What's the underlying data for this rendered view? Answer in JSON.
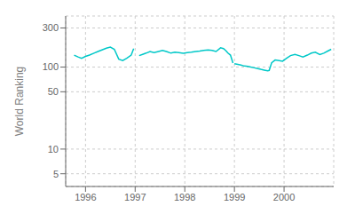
{
  "chart_data": {
    "type": "line",
    "ylabel": "World Ranking",
    "log": "y",
    "grid": true,
    "xlim": [
      1995.6,
      2001.0
    ],
    "xticks": [
      1996,
      1997,
      1998,
      1999,
      2000
    ],
    "ylim": [
      3.5,
      420
    ],
    "yticks": [
      5,
      10,
      50,
      100,
      300
    ],
    "series": [
      {
        "color": "#00c8c8",
        "x": [
          1995.77,
          1995.85,
          1995.92,
          1996.0,
          1996.08,
          1996.17,
          1996.25,
          1996.33,
          1996.42,
          1996.5,
          1996.58,
          1996.67,
          1996.75,
          1996.83,
          1996.92,
          1996.97
        ],
        "values": [
          140,
          133,
          128,
          135,
          140,
          148,
          155,
          162,
          170,
          175,
          165,
          125,
          120,
          128,
          140,
          168
        ]
      },
      {
        "color": "#00c8c8",
        "x": [
          1997.08,
          1997.15,
          1997.22,
          1997.3,
          1997.38,
          1997.47,
          1997.55,
          1997.63,
          1997.72,
          1997.8,
          1997.88,
          1997.97,
          1998.05,
          1998.13,
          1998.22,
          1998.3,
          1998.38,
          1998.47,
          1998.55,
          1998.63,
          1998.72,
          1998.78,
          1998.83,
          1998.87,
          1998.92,
          1998.97
        ],
        "values": [
          138,
          143,
          148,
          155,
          150,
          155,
          160,
          155,
          148,
          152,
          150,
          147,
          150,
          152,
          155,
          157,
          160,
          162,
          160,
          155,
          172,
          168,
          158,
          148,
          140,
          112
        ]
      },
      {
        "color": "#00c8c8",
        "x": [
          1999.0,
          1999.07,
          1999.13,
          1999.2,
          1999.27,
          1999.33,
          1999.4,
          1999.47,
          1999.53,
          1999.6,
          1999.67,
          1999.7,
          1999.75,
          1999.82,
          1999.9,
          1999.97,
          2000.05,
          2000.13,
          2000.22,
          2000.3,
          2000.38,
          2000.47,
          2000.55,
          2000.63,
          2000.72,
          2000.8,
          2000.88,
          2000.95
        ],
        "values": [
          110,
          108,
          106,
          103,
          102,
          100,
          98,
          96,
          94,
          92,
          90,
          91,
          113,
          122,
          120,
          118,
          128,
          138,
          143,
          138,
          133,
          140,
          148,
          152,
          142,
          148,
          157,
          165
        ]
      }
    ]
  }
}
